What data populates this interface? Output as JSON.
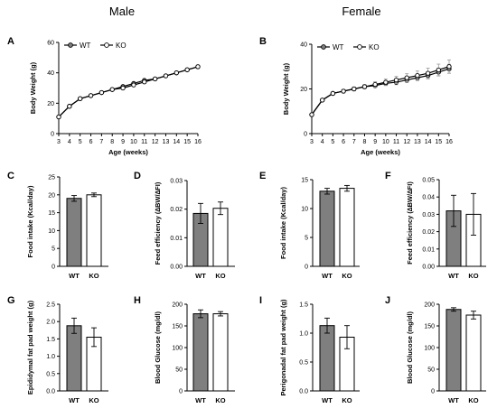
{
  "figure": {
    "column_titles": [
      "Male",
      "Female"
    ],
    "panel_letters": [
      "A",
      "B",
      "C",
      "D",
      "E",
      "F",
      "G",
      "H",
      "I",
      "J"
    ]
  },
  "colors": {
    "wt_fill": "#7f7f7f",
    "ko_fill": "#ffffff",
    "stroke": "#000000",
    "error_bar": "#9a9a9a"
  },
  "chart_data": [
    {
      "id": "A",
      "type": "line",
      "ylabel": "Body Weight (g)",
      "xlabel": "Age (weeks)",
      "ylim": [
        0,
        60
      ],
      "yticks": [
        0,
        20,
        40,
        60
      ],
      "x": [
        3,
        4,
        5,
        6,
        7,
        8,
        9,
        10,
        11,
        12,
        13,
        14,
        15,
        16
      ],
      "xticks": [
        "3",
        "4",
        "5",
        "6",
        "7",
        "8",
        "9",
        "10",
        "11",
        "12",
        "13",
        "14",
        "15",
        "16"
      ],
      "legend": [
        "WT",
        "KO"
      ],
      "series": [
        {
          "name": "WT",
          "values": [
            11,
            18,
            23,
            25,
            27,
            29,
            31,
            33,
            35,
            36,
            38,
            40,
            42,
            44
          ],
          "err": [
            0.6,
            0.6,
            0.7,
            0.7,
            0.7,
            0.7,
            0.8,
            0.8,
            0.8,
            0.8,
            0.9,
            0.9,
            1.0,
            1.0
          ]
        },
        {
          "name": "KO",
          "values": [
            11,
            18,
            23,
            25,
            27,
            29,
            30,
            32,
            34,
            36,
            38,
            40,
            42,
            44
          ],
          "err": [
            0.6,
            0.6,
            0.7,
            0.7,
            0.7,
            0.7,
            0.8,
            0.8,
            0.8,
            0.8,
            0.9,
            0.9,
            1.0,
            1.2
          ]
        }
      ]
    },
    {
      "id": "B",
      "type": "line",
      "ylabel": "Body Weight (g)",
      "xlabel": "Age (weeks)",
      "ylim": [
        0,
        40
      ],
      "yticks": [
        0,
        20,
        40
      ],
      "x": [
        3,
        4,
        5,
        6,
        7,
        8,
        9,
        10,
        11,
        12,
        13,
        14,
        15,
        16
      ],
      "xticks": [
        "3",
        "4",
        "5",
        "6",
        "7",
        "8",
        "9",
        "10",
        "11",
        "12",
        "13",
        "14",
        "15",
        "16"
      ],
      "legend": [
        "WT",
        "KO"
      ],
      "series": [
        {
          "name": "WT",
          "values": [
            8.5,
            15,
            18,
            19,
            20,
            21,
            21.5,
            22.5,
            23,
            24,
            25,
            26,
            27.5,
            29
          ],
          "err": [
            0.5,
            0.5,
            0.6,
            0.6,
            0.7,
            0.8,
            0.9,
            1.0,
            1.1,
            1.2,
            1.3,
            1.5,
            1.7,
            2.0
          ]
        },
        {
          "name": "KO",
          "values": [
            8.5,
            15,
            18,
            19,
            20,
            21,
            22,
            23,
            24,
            25,
            26,
            27,
            28.5,
            30
          ],
          "err": [
            0.5,
            0.6,
            0.7,
            0.8,
            0.9,
            1.0,
            1.2,
            1.4,
            1.6,
            1.8,
            2.0,
            2.3,
            2.6,
            3.0
          ]
        }
      ]
    },
    {
      "id": "C",
      "type": "bar",
      "ylabel": "Food intake (Kcal/day)",
      "categories": [
        "WT",
        "KO"
      ],
      "ylim": [
        0,
        25
      ],
      "yticks": [
        "0",
        "5",
        "10",
        "15",
        "20",
        "25"
      ],
      "values": [
        19,
        20
      ],
      "err": [
        0.8,
        0.5
      ]
    },
    {
      "id": "D",
      "type": "bar",
      "ylabel": "Feed efficiency (∆BW/∆FI)",
      "categories": [
        "WT",
        "KO"
      ],
      "ylim": [
        0,
        0.03
      ],
      "yticks": [
        "0.00",
        "0.01",
        "0.02",
        "0.03"
      ],
      "values": [
        0.0185,
        0.0203
      ],
      "err": [
        0.0035,
        0.0022
      ]
    },
    {
      "id": "E",
      "type": "bar",
      "ylabel": "Food intake (Kcal/day)",
      "categories": [
        "WT",
        "KO"
      ],
      "ylim": [
        0,
        15
      ],
      "yticks": [
        "0",
        "5",
        "10",
        "15"
      ],
      "values": [
        13,
        13.5
      ],
      "err": [
        0.5,
        0.5
      ]
    },
    {
      "id": "F",
      "type": "bar",
      "ylabel": "Feed efficiency (∆BW/∆FI)",
      "categories": [
        "WT",
        "KO"
      ],
      "ylim": [
        0,
        0.05
      ],
      "yticks": [
        "0.00",
        "0.01",
        "0.02",
        "0.03",
        "0.04",
        "0.05"
      ],
      "values": [
        0.032,
        0.03
      ],
      "err": [
        0.009,
        0.012
      ]
    },
    {
      "id": "G",
      "type": "bar",
      "ylabel": "Epididymal fat pad weight (g)",
      "categories": [
        "WT",
        "KO"
      ],
      "ylim": [
        0,
        2.5
      ],
      "yticks": [
        "0.0",
        "0.5",
        "1.0",
        "1.5",
        "2.0",
        "2.5"
      ],
      "values": [
        1.88,
        1.55
      ],
      "err": [
        0.22,
        0.27
      ]
    },
    {
      "id": "H",
      "type": "bar",
      "ylabel": "Blood Glucose (mg/dl)",
      "categories": [
        "WT",
        "KO"
      ],
      "ylim": [
        0,
        200
      ],
      "yticks": [
        "0",
        "50",
        "100",
        "150",
        "200"
      ],
      "values": [
        178,
        178
      ],
      "err": [
        9,
        5
      ]
    },
    {
      "id": "I",
      "type": "bar",
      "ylabel": "Perigonadal fat pad weight (g)",
      "categories": [
        "WT",
        "KO"
      ],
      "ylim": [
        0,
        1.5
      ],
      "yticks": [
        "0.0",
        "0.5",
        "1.0",
        "1.5"
      ],
      "values": [
        1.13,
        0.93
      ],
      "err": [
        0.13,
        0.2
      ]
    },
    {
      "id": "J",
      "type": "bar",
      "ylabel": "Blood Glucose (mg/dl)",
      "categories": [
        "WT",
        "KO"
      ],
      "ylim": [
        0,
        200
      ],
      "yticks": [
        "0",
        "50",
        "100",
        "150",
        "200"
      ],
      "values": [
        188,
        175
      ],
      "err": [
        4,
        9
      ]
    }
  ]
}
